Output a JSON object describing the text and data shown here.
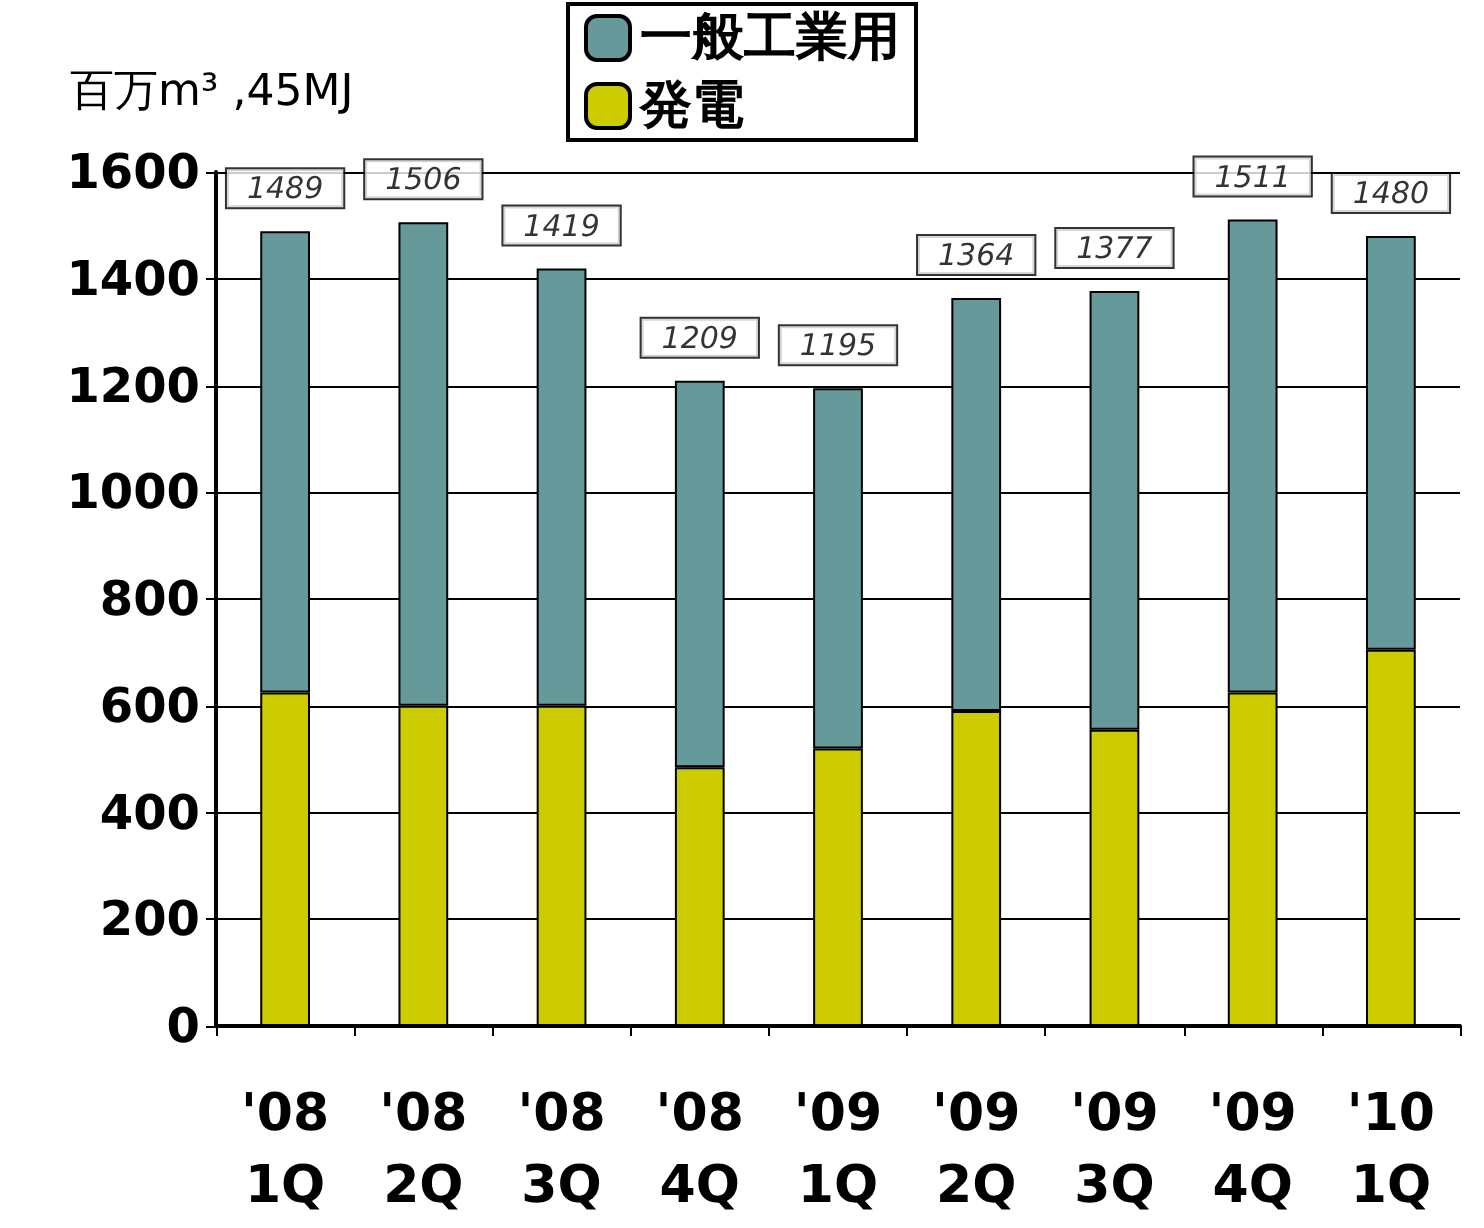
{
  "chart_data": {
    "type": "bar",
    "stacked": true,
    "ylabel": "百万m³ ,45MJ",
    "categories": [
      "'08\n1Q",
      "'08\n2Q",
      "'08\n3Q",
      "'08\n4Q",
      "'09\n1Q",
      "'09\n2Q",
      "'09\n3Q",
      "'09\n4Q",
      "'10\n1Q"
    ],
    "series": [
      {
        "name": "発電",
        "color": "#cccc00",
        "values": [
          625,
          600,
          600,
          485,
          520,
          590,
          555,
          625,
          705
        ]
      },
      {
        "name": "一般工業用",
        "color": "#669999",
        "values": [
          864,
          906,
          819,
          724,
          675,
          774,
          822,
          886,
          775
        ]
      }
    ],
    "totals": [
      "1489",
      "1506",
      "1419",
      "1209",
      "1195",
      "1364",
      "1377",
      "1511",
      "1480"
    ],
    "ylim": [
      0,
      1600
    ],
    "yticks": [
      0,
      200,
      400,
      600,
      800,
      1000,
      1200,
      1400,
      1600
    ],
    "grid": "y",
    "legend": "top"
  }
}
